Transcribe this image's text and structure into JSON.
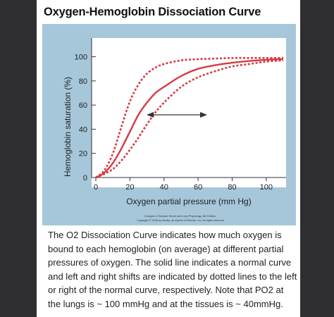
{
  "page": {
    "title": "Oxygen-Hemoglobin Dissociation Curve",
    "credit_line1": "Koeppen & Stanton: Berne and Levy Physiology, 6th Edition.",
    "credit_line2": "Copyright © 2008 by Mosby, an imprint of Elsevier, Inc. All rights reserved",
    "caption_lines": [
      "The O2 Dissociation Curve indicates how much oxygen is",
      "bound to each hemoglobin (on average) at different partial",
      "pressures of oxygen. The solid line indicates a normal curve",
      "and left and right shifts are indicated by dotted lines to the left",
      "or right of the normal curve, respectively. Note that PO2 at",
      "the lungs is ~ 100 mmHg and at the tissues is ~ 40mmHg."
    ]
  },
  "chart_data": {
    "type": "line",
    "title": "",
    "xlabel": "Oxygen partial pressure (mm Hg)",
    "ylabel": "Hemoglobin saturation (%)",
    "xlim": [
      0,
      110
    ],
    "ylim": [
      0,
      105
    ],
    "x_ticks": [
      0,
      20,
      40,
      60,
      80,
      100
    ],
    "y_ticks": [
      0,
      20,
      40,
      60,
      80,
      100
    ],
    "grid": false,
    "line_color": "#d63a43",
    "series": [
      {
        "style": "dashed",
        "x": [
          0,
          5,
          10,
          15,
          20,
          25,
          30,
          35,
          40,
          50,
          60,
          70,
          80,
          90,
          100,
          110
        ],
        "y": [
          0,
          6,
          20,
          42,
          63,
          77,
          86,
          91,
          94,
          97,
          98,
          98.5,
          99,
          99,
          99,
          99
        ]
      },
      {
        "style": "solid",
        "x": [
          0,
          5,
          10,
          15,
          20,
          25,
          30,
          35,
          40,
          50,
          60,
          70,
          80,
          90,
          100,
          110
        ],
        "y": [
          0,
          4,
          12,
          24,
          38,
          52,
          62,
          70,
          75,
          84,
          90,
          93,
          95,
          96.5,
          97.5,
          98
        ]
      },
      {
        "style": "dashed",
        "x": [
          0,
          5,
          10,
          15,
          20,
          25,
          30,
          35,
          40,
          50,
          60,
          70,
          80,
          90,
          100,
          110
        ],
        "y": [
          0,
          3,
          7,
          14,
          23,
          33,
          44,
          54,
          62,
          75,
          83,
          88,
          92,
          94,
          96,
          97
        ]
      }
    ],
    "annotation": "double-headed arrow indicating left/right shift"
  }
}
